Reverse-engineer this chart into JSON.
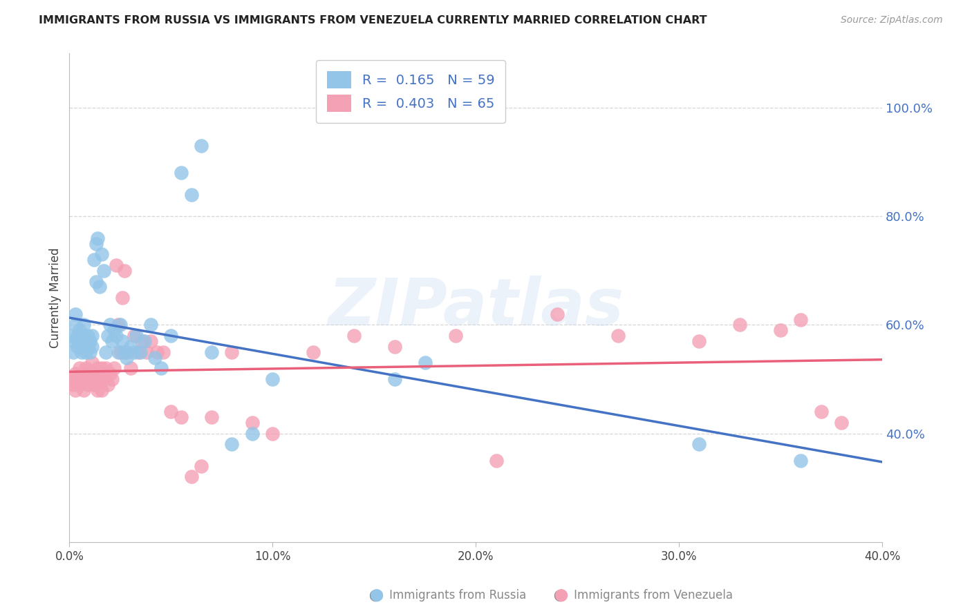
{
  "title": "IMMIGRANTS FROM RUSSIA VS IMMIGRANTS FROM VENEZUELA CURRENTLY MARRIED CORRELATION CHART",
  "source": "Source: ZipAtlas.com",
  "ylabel": "Currently Married",
  "xlim": [
    0.0,
    0.4
  ],
  "ylim": [
    0.2,
    1.1
  ],
  "ytick_values": [
    0.4,
    0.6,
    0.8,
    1.0
  ],
  "xtick_values": [
    0.0,
    0.1,
    0.2,
    0.3,
    0.4
  ],
  "russia_R": 0.165,
  "russia_N": 59,
  "venezuela_R": 0.403,
  "venezuela_N": 65,
  "russia_color": "#92C5E8",
  "venezuela_color": "#F4A0B5",
  "russia_line_color": "#4472C4",
  "venezuela_line_color": "#E8607A",
  "background_color": "#FFFFFF",
  "grid_color": "#CCCCCC",
  "title_color": "#222222",
  "tick_color": "#4472C4",
  "watermark": "ZIPatlas",
  "russia_x": [
    0.001,
    0.002,
    0.002,
    0.003,
    0.003,
    0.004,
    0.004,
    0.005,
    0.005,
    0.006,
    0.006,
    0.007,
    0.007,
    0.008,
    0.008,
    0.009,
    0.009,
    0.01,
    0.01,
    0.011,
    0.011,
    0.012,
    0.013,
    0.013,
    0.014,
    0.015,
    0.016,
    0.017,
    0.018,
    0.019,
    0.02,
    0.021,
    0.022,
    0.023,
    0.024,
    0.025,
    0.026,
    0.027,
    0.028,
    0.03,
    0.032,
    0.033,
    0.035,
    0.037,
    0.04,
    0.042,
    0.045,
    0.05,
    0.055,
    0.06,
    0.065,
    0.07,
    0.08,
    0.09,
    0.1,
    0.16,
    0.175,
    0.31,
    0.36
  ],
  "russia_y": [
    0.58,
    0.57,
    0.55,
    0.6,
    0.62,
    0.58,
    0.56,
    0.57,
    0.59,
    0.56,
    0.55,
    0.6,
    0.58,
    0.57,
    0.55,
    0.56,
    0.58,
    0.55,
    0.57,
    0.58,
    0.56,
    0.72,
    0.75,
    0.68,
    0.76,
    0.67,
    0.73,
    0.7,
    0.55,
    0.58,
    0.6,
    0.57,
    0.59,
    0.58,
    0.55,
    0.6,
    0.57,
    0.55,
    0.54,
    0.56,
    0.55,
    0.58,
    0.55,
    0.57,
    0.6,
    0.54,
    0.52,
    0.58,
    0.88,
    0.84,
    0.93,
    0.55,
    0.38,
    0.4,
    0.5,
    0.5,
    0.53,
    0.38,
    0.35
  ],
  "venezuela_x": [
    0.001,
    0.002,
    0.003,
    0.003,
    0.004,
    0.005,
    0.005,
    0.006,
    0.007,
    0.007,
    0.008,
    0.008,
    0.009,
    0.01,
    0.01,
    0.011,
    0.012,
    0.012,
    0.013,
    0.014,
    0.014,
    0.015,
    0.016,
    0.016,
    0.017,
    0.018,
    0.019,
    0.02,
    0.021,
    0.022,
    0.023,
    0.024,
    0.025,
    0.026,
    0.027,
    0.028,
    0.03,
    0.032,
    0.034,
    0.036,
    0.038,
    0.04,
    0.043,
    0.046,
    0.05,
    0.055,
    0.06,
    0.065,
    0.07,
    0.08,
    0.09,
    0.1,
    0.12,
    0.14,
    0.16,
    0.19,
    0.21,
    0.24,
    0.27,
    0.31,
    0.33,
    0.35,
    0.36,
    0.37,
    0.38
  ],
  "venezuela_y": [
    0.5,
    0.49,
    0.48,
    0.51,
    0.5,
    0.52,
    0.49,
    0.5,
    0.51,
    0.48,
    0.5,
    0.52,
    0.49,
    0.5,
    0.51,
    0.53,
    0.49,
    0.51,
    0.5,
    0.52,
    0.48,
    0.5,
    0.52,
    0.48,
    0.5,
    0.52,
    0.49,
    0.51,
    0.5,
    0.52,
    0.71,
    0.6,
    0.55,
    0.65,
    0.7,
    0.55,
    0.52,
    0.58,
    0.55,
    0.57,
    0.55,
    0.57,
    0.55,
    0.55,
    0.44,
    0.43,
    0.32,
    0.34,
    0.43,
    0.55,
    0.42,
    0.4,
    0.55,
    0.58,
    0.56,
    0.58,
    0.35,
    0.62,
    0.58,
    0.57,
    0.6,
    0.59,
    0.61,
    0.44,
    0.42
  ]
}
